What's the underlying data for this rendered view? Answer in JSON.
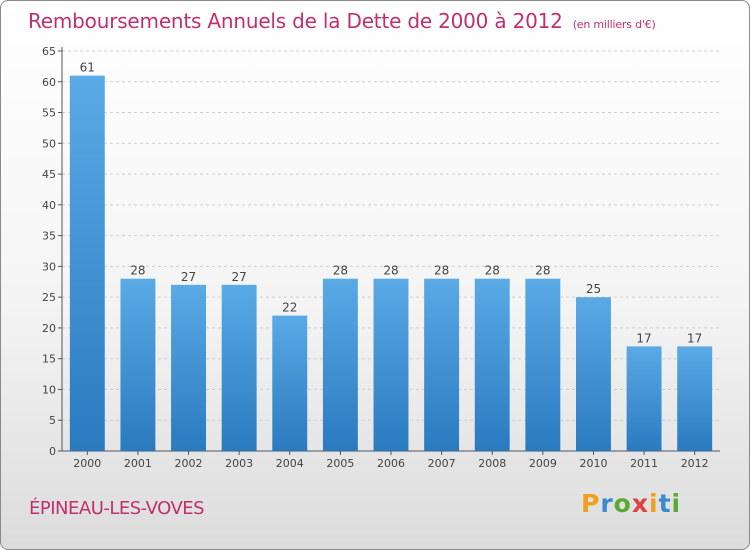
{
  "title": "Remboursements Annuels de la Dette de 2000 à 2012",
  "unit_note": "(en milliers d'€)",
  "commune": "ÉPINEAU-LES-VOVES",
  "logo": {
    "letters": [
      "P",
      "r",
      "o",
      "x",
      "i",
      "t",
      "i"
    ],
    "colors": [
      "#f0a020",
      "#3a8ad0",
      "#5aaa30",
      "#e04040",
      "#f0a020",
      "#3a8ad0",
      "#5aaa30"
    ]
  },
  "colors": {
    "bar_top": "#5aaae6",
    "bar_bottom": "#2a7ac0",
    "title": "#c0306e"
  },
  "chart_data": {
    "type": "bar",
    "title": "Remboursements Annuels de la Dette de 2000 à 2012",
    "xlabel": "",
    "ylabel": "",
    "ylim": [
      0,
      65
    ],
    "yticks": [
      0,
      5,
      10,
      15,
      20,
      25,
      30,
      35,
      40,
      45,
      50,
      55,
      60,
      65
    ],
    "grid": true,
    "categories": [
      "2000",
      "2001",
      "2002",
      "2003",
      "2004",
      "2005",
      "2006",
      "2007",
      "2008",
      "2009",
      "2010",
      "2011",
      "2012"
    ],
    "values": [
      61,
      28,
      27,
      27,
      22,
      28,
      28,
      28,
      28,
      28,
      25,
      17,
      17
    ]
  }
}
